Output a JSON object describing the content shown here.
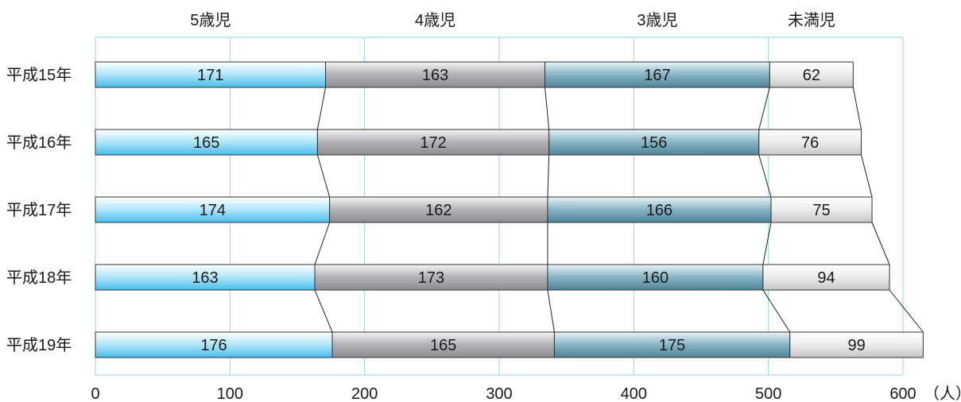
{
  "chart_data": {
    "type": "bar",
    "orientation": "horizontal",
    "stacked": true,
    "categories": [
      "平成15年",
      "平成16年",
      "平成17年",
      "平成18年",
      "平成19年"
    ],
    "series": [
      {
        "name": "5歳児",
        "values": [
          171,
          165,
          174,
          163,
          176
        ],
        "color": "#6ccdf2"
      },
      {
        "name": "4歳児",
        "values": [
          163,
          172,
          162,
          173,
          165
        ],
        "color": "#a9a9ad"
      },
      {
        "name": "3歳児",
        "values": [
          167,
          156,
          166,
          160,
          175
        ],
        "color": "#7aa9bb"
      },
      {
        "name": "未満児",
        "values": [
          62,
          76,
          75,
          94,
          99
        ],
        "color": "#dcdcdc"
      }
    ],
    "xlim": [
      0,
      600
    ],
    "xticks": [
      0,
      100,
      200,
      300,
      400,
      500,
      600
    ],
    "xunit": "（人）",
    "grid": true,
    "legend_position": "top"
  }
}
